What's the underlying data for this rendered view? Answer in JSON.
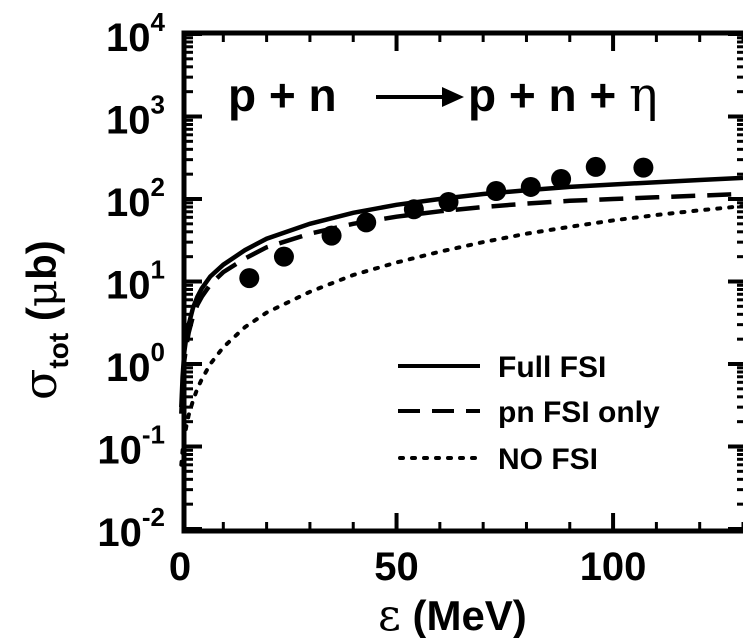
{
  "chart_data": {
    "type": "line",
    "title": "",
    "reaction": {
      "lhs": "p + n",
      "rhs_pre": "p + n + ",
      "rhs_eta": "η"
    },
    "xlabel": {
      "symbol": "ε",
      "unit": " (MeV)"
    },
    "ylabel": {
      "sigma": "σ",
      "subscript": "tot",
      "mu": "μ",
      "unit_open": " (",
      "unit_close": "b)"
    },
    "xlim": [
      0,
      130
    ],
    "ylim_log10": [
      -2,
      4
    ],
    "log_y": true,
    "x_ticks": [
      0,
      50,
      100
    ],
    "x_tick_labels": [
      "0",
      "50",
      "100"
    ],
    "y_ticks": [
      {
        "base": "10",
        "exp": "-2",
        "value": 0.01
      },
      {
        "base": "10",
        "exp": "-1",
        "value": 0.1
      },
      {
        "base": "10",
        "exp": "0",
        "value": 1
      },
      {
        "base": "10",
        "exp": "1",
        "value": 10
      },
      {
        "base": "10",
        "exp": "2",
        "value": 100
      },
      {
        "base": "10",
        "exp": "3",
        "value": 1000
      },
      {
        "base": "10",
        "exp": "4",
        "value": 10000
      }
    ],
    "legend_position": "bottom-right",
    "series": [
      {
        "name": "Full FSI",
        "style": "solid",
        "x": [
          0.3,
          0.6,
          1,
          1.5,
          2,
          3,
          4,
          5,
          7,
          10,
          15,
          20,
          30,
          40,
          50,
          60,
          70,
          80,
          90,
          100,
          110,
          120,
          130
        ],
        "y": [
          0.3,
          0.7,
          1.4,
          2.2,
          3.0,
          4.8,
          6.5,
          8.2,
          11.5,
          16,
          24,
          33,
          50,
          68,
          85,
          100,
          115,
          128,
          140,
          150,
          160,
          170,
          180
        ]
      },
      {
        "name": "pn FSI only",
        "style": "dashed",
        "x": [
          0.3,
          0.6,
          1,
          1.5,
          2,
          3,
          4,
          5,
          7,
          10,
          15,
          20,
          30,
          40,
          50,
          60,
          70,
          80,
          90,
          100,
          110,
          120,
          130
        ],
        "y": [
          0.25,
          0.55,
          1.1,
          1.7,
          2.4,
          3.8,
          5.2,
          6.5,
          9.2,
          13,
          19,
          26,
          38,
          50,
          61,
          71,
          80,
          88,
          95,
          100,
          105,
          110,
          115
        ]
      },
      {
        "name": "NO FSI",
        "style": "dotted",
        "x": [
          0.3,
          0.6,
          1,
          1.5,
          2,
          3,
          4,
          5,
          7,
          10,
          15,
          20,
          30,
          40,
          50,
          60,
          70,
          80,
          90,
          100,
          110,
          120,
          130
        ],
        "y": [
          0.06,
          0.09,
          0.13,
          0.18,
          0.24,
          0.36,
          0.5,
          0.65,
          1.0,
          1.6,
          2.8,
          4.2,
          7.5,
          12,
          17,
          23,
          30,
          38,
          46,
          55,
          64,
          73,
          82
        ]
      }
    ],
    "data_points": {
      "name": "",
      "x": [
        16,
        24,
        35,
        43,
        54,
        62,
        73,
        81,
        88,
        96,
        107
      ],
      "y": [
        11,
        20,
        36,
        52,
        75,
        92,
        125,
        140,
        175,
        245,
        240
      ]
    }
  }
}
